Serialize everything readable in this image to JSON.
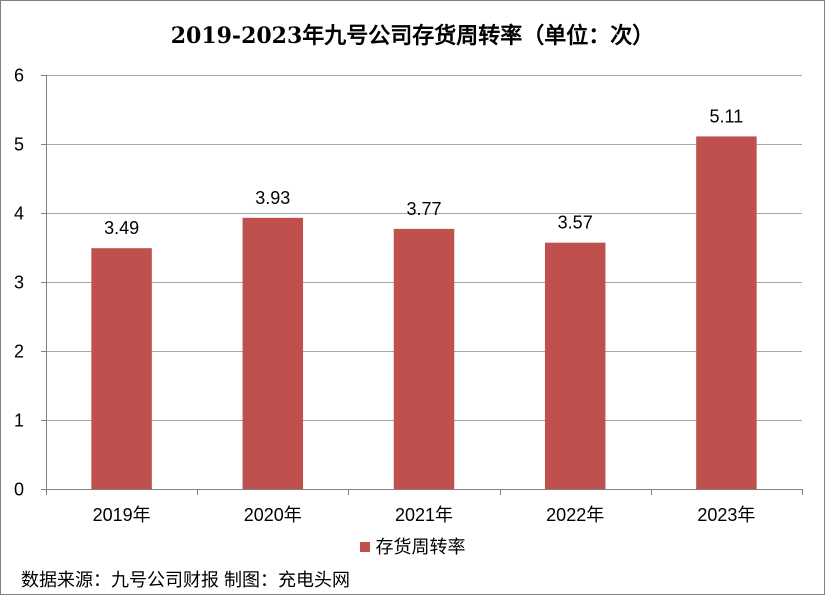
{
  "title": "2019-2023年九号公司存货周转率（单位：次）",
  "source_note": "数据来源：九号公司财报 制图：充电头网",
  "colors": {
    "bar": "#C0504D",
    "grid": "#A6A6A6",
    "axis": "#808080",
    "text": "#000000"
  },
  "chart_data": {
    "type": "bar",
    "title": "2019-2023年九号公司存货周转率（单位：次）",
    "categories": [
      "2019年",
      "2020年",
      "2021年",
      "2022年",
      "2023年"
    ],
    "series": [
      {
        "name": "存货周转率",
        "values": [
          3.49,
          3.93,
          3.77,
          3.57,
          5.11
        ]
      }
    ],
    "data_labels": [
      "3.49",
      "3.93",
      "3.77",
      "3.57",
      "5.11"
    ],
    "xlabel": "",
    "ylabel": "",
    "ylim": [
      0,
      6
    ],
    "yticks": [
      0,
      1,
      2,
      3,
      4,
      5,
      6
    ],
    "grid": true,
    "legend": "bottom"
  }
}
